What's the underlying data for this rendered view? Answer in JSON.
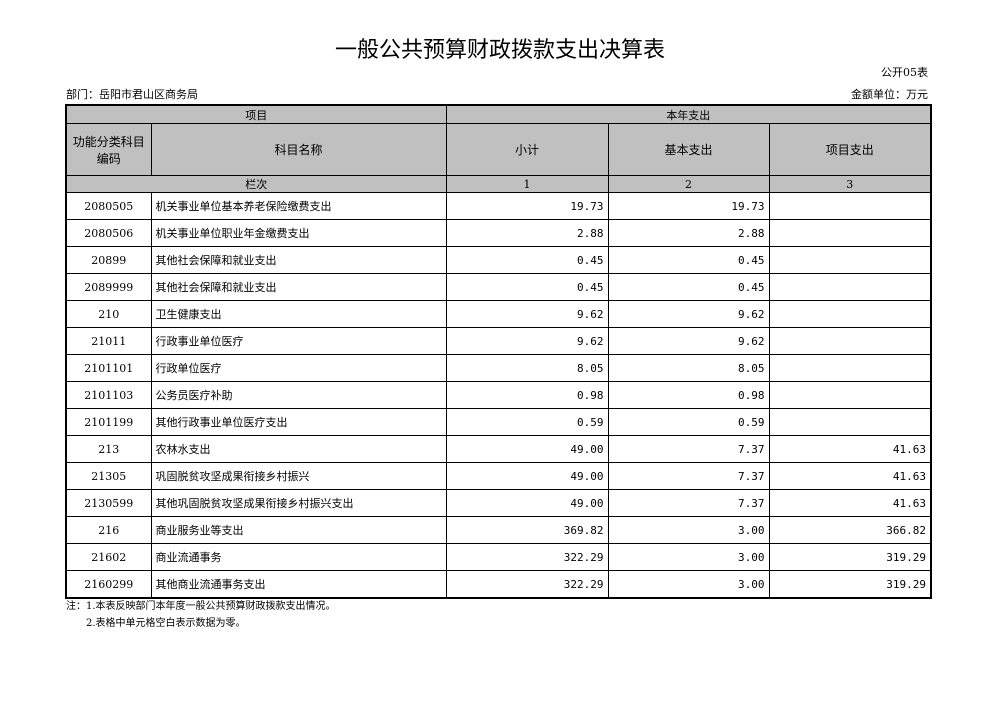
{
  "title": "一般公共预算财政拨款支出决算表",
  "table_code": "公开05表",
  "department": "部门：岳阳市君山区商务局",
  "unit": "金额单位：万元",
  "headers": {
    "item": "项目",
    "current_year": "本年支出",
    "code": "功能分类科目编码",
    "name": "科目名称",
    "subtotal": "小计",
    "basic": "基本支出",
    "project": "项目支出",
    "column_order": "栏次",
    "col1": "1",
    "col2": "2",
    "col3": "3"
  },
  "rows": [
    {
      "code": "2080505",
      "name": "机关事业单位基本养老保险缴费支出",
      "subtotal": "19.73",
      "basic": "19.73",
      "project": ""
    },
    {
      "code": "2080506",
      "name": "机关事业单位职业年金缴费支出",
      "subtotal": "2.88",
      "basic": "2.88",
      "project": ""
    },
    {
      "code": "20899",
      "name": "其他社会保障和就业支出",
      "subtotal": "0.45",
      "basic": "0.45",
      "project": ""
    },
    {
      "code": "2089999",
      "name": "其他社会保障和就业支出",
      "subtotal": "0.45",
      "basic": "0.45",
      "project": ""
    },
    {
      "code": "210",
      "name": "卫生健康支出",
      "subtotal": "9.62",
      "basic": "9.62",
      "project": ""
    },
    {
      "code": "21011",
      "name": "行政事业单位医疗",
      "subtotal": "9.62",
      "basic": "9.62",
      "project": ""
    },
    {
      "code": "2101101",
      "name": "行政单位医疗",
      "subtotal": "8.05",
      "basic": "8.05",
      "project": ""
    },
    {
      "code": "2101103",
      "name": "公务员医疗补助",
      "subtotal": "0.98",
      "basic": "0.98",
      "project": ""
    },
    {
      "code": "2101199",
      "name": "其他行政事业单位医疗支出",
      "subtotal": "0.59",
      "basic": "0.59",
      "project": ""
    },
    {
      "code": "213",
      "name": "农林水支出",
      "subtotal": "49.00",
      "basic": "7.37",
      "project": "41.63"
    },
    {
      "code": "21305",
      "name": "巩固脱贫攻坚成果衔接乡村振兴",
      "subtotal": "49.00",
      "basic": "7.37",
      "project": "41.63"
    },
    {
      "code": "2130599",
      "name": "其他巩固脱贫攻坚成果衔接乡村振兴支出",
      "subtotal": "49.00",
      "basic": "7.37",
      "project": "41.63"
    },
    {
      "code": "216",
      "name": "商业服务业等支出",
      "subtotal": "369.82",
      "basic": "3.00",
      "project": "366.82"
    },
    {
      "code": "21602",
      "name": "商业流通事务",
      "subtotal": "322.29",
      "basic": "3.00",
      "project": "319.29"
    },
    {
      "code": "2160299",
      "name": "其他商业流通事务支出",
      "subtotal": "322.29",
      "basic": "3.00",
      "project": "319.29"
    }
  ],
  "notes": [
    "注：1.本表反映部门本年度一般公共预算财政拨款支出情况。",
    "2.表格中单元格空白表示数据为零。"
  ]
}
